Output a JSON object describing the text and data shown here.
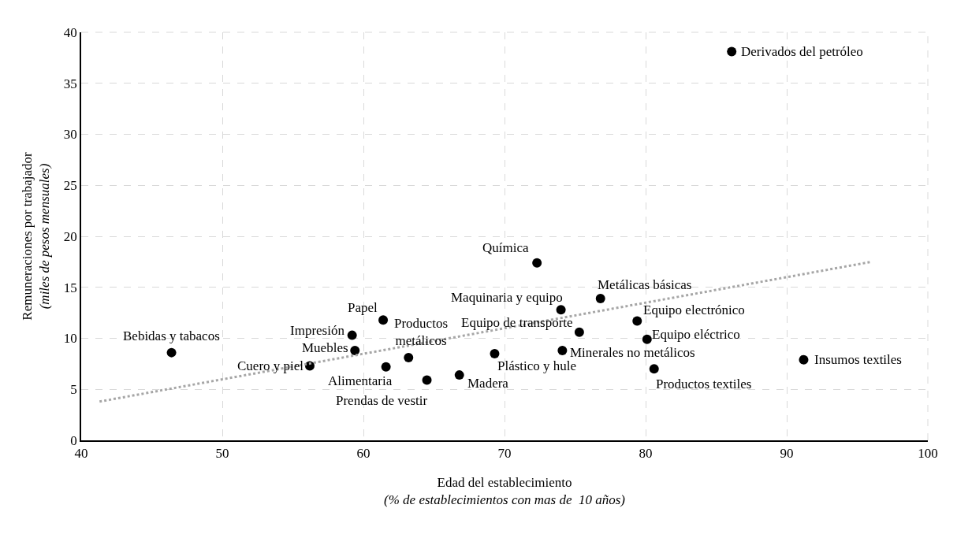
{
  "chart_data": {
    "type": "scatter",
    "xlabel": "Edad del establecimiento\n(% de establecimientos con mas de  10 años)",
    "ylabel": "Remuneraciones por trabajador\n(miles de pesos mensuales)",
    "xlim": [
      40,
      100
    ],
    "xticks": [
      40,
      50,
      60,
      70,
      80,
      90,
      100
    ],
    "ylim": [
      0,
      40
    ],
    "yticks": [
      0,
      5,
      10,
      15,
      20,
      25,
      30,
      35,
      40
    ],
    "grid": true,
    "marker": "circle",
    "series": [
      {
        "color": "#000000",
        "x": [
          86.1,
          72.3,
          74.0,
          76.8,
          75.3,
          79.4,
          80.1,
          74.1,
          69.3,
          66.8,
          64.5,
          63.2,
          61.6,
          61.4,
          59.2,
          59.4,
          56.2,
          46.4,
          80.6,
          91.2
        ],
        "values": [
          38.1,
          17.4,
          12.8,
          13.9,
          10.6,
          11.7,
          9.9,
          8.8,
          8.5,
          6.4,
          5.9,
          8.1,
          7.2,
          11.8,
          10.3,
          8.8,
          7.3,
          8.6,
          7.0,
          7.9
        ]
      },
      {
        "type": "line",
        "color": "#a6a6a6",
        "line_style": "dotted",
        "marker": "none",
        "x": [
          41.3,
          96.0
        ],
        "values": [
          3.8,
          17.5
        ]
      }
    ],
    "annotations": [
      {
        "text": "Derivados del petróleo",
        "x": 86.1,
        "y": 38.1
      },
      {
        "text": "Química",
        "x": 72.3,
        "y": 17.4
      },
      {
        "text": "Maquinaria y equipo",
        "x": 74.0,
        "y": 12.8
      },
      {
        "text": "Metálicas básicas",
        "x": 76.8,
        "y": 13.9
      },
      {
        "text": "Equipo de transporte",
        "x": 75.3,
        "y": 10.6
      },
      {
        "text": "Equipo electrónico",
        "x": 79.4,
        "y": 11.7
      },
      {
        "text": "Equipo eléctrico",
        "x": 80.1,
        "y": 9.9
      },
      {
        "text": "Minerales no metálicos",
        "x": 74.1,
        "y": 8.8
      },
      {
        "text": "Plástico y hule",
        "x": 69.3,
        "y": 8.5
      },
      {
        "text": "Madera",
        "x": 66.8,
        "y": 6.4
      },
      {
        "text": "Prendas de vestir",
        "x": 64.5,
        "y": 5.9
      },
      {
        "text": "Productos\nmetálicos",
        "x": 63.2,
        "y": 8.1
      },
      {
        "text": "Alimentaria",
        "x": 61.6,
        "y": 7.2
      },
      {
        "text": "Papel",
        "x": 61.4,
        "y": 11.8
      },
      {
        "text": "Impresión",
        "x": 59.2,
        "y": 10.3
      },
      {
        "text": "Muebles",
        "x": 59.4,
        "y": 8.8
      },
      {
        "text": "Cuero y piel",
        "x": 56.2,
        "y": 7.3
      },
      {
        "text": "Bebidas y tabacos",
        "x": 46.4,
        "y": 8.6
      },
      {
        "text": "Productos textiles",
        "x": 80.6,
        "y": 7.0
      },
      {
        "text": "Insumos textiles",
        "x": 91.2,
        "y": 7.9
      }
    ]
  }
}
